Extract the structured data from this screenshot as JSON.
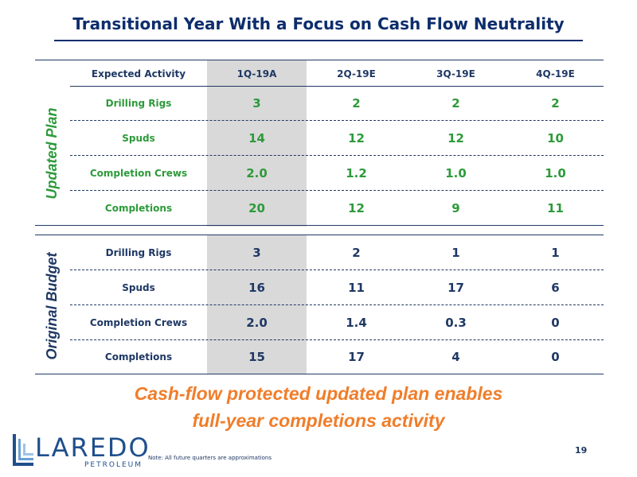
{
  "title": "Transitional Year With a Focus on Cash Flow Neutrality",
  "table": {
    "header": [
      "Expected Activity",
      "1Q-19A",
      "2Q-19E",
      "3Q-19E",
      "4Q-19E"
    ],
    "updated_plan": {
      "label": "Updated Plan",
      "rows": [
        {
          "label": "Drilling Rigs",
          "values": [
            "3",
            "2",
            "2",
            "2"
          ]
        },
        {
          "label": "Spuds",
          "values": [
            "14",
            "12",
            "12",
            "10"
          ]
        },
        {
          "label": "Completion Crews",
          "values": [
            "2.0",
            "1.2",
            "1.0",
            "1.0"
          ]
        },
        {
          "label": "Completions",
          "values": [
            "20",
            "12",
            "9",
            "11"
          ]
        }
      ]
    },
    "original_budget": {
      "label": "Original Budget",
      "rows": [
        {
          "label": "Drilling Rigs",
          "values": [
            "3",
            "2",
            "1",
            "1"
          ]
        },
        {
          "label": "Spuds",
          "values": [
            "16",
            "11",
            "17",
            "6"
          ]
        },
        {
          "label": "Completion Crews",
          "values": [
            "2.0",
            "1.4",
            "0.3",
            "0"
          ]
        },
        {
          "label": "Completions",
          "values": [
            "15",
            "17",
            "4",
            "0"
          ]
        }
      ]
    }
  },
  "tagline": {
    "line1": "Cash-flow protected updated plan enables",
    "line2": "full-year completions activity"
  },
  "logo": {
    "word": "LAREDO",
    "sub": "PETROLEUM"
  },
  "note": "Note: All future quarters are approximations",
  "page_number": "19",
  "colors": {
    "navy": "#1f3864",
    "green": "#2d9a3a",
    "orange": "#f07d2a",
    "shade": "#d9d9d9"
  }
}
